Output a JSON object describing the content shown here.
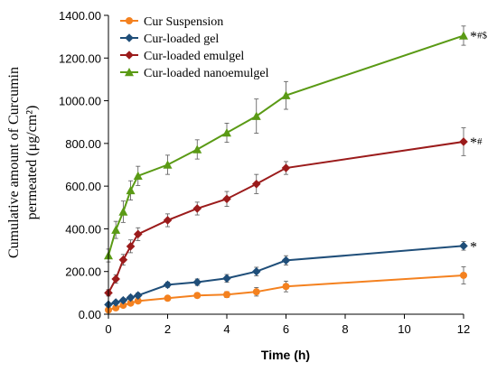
{
  "chart_data": {
    "type": "line",
    "xlabel": "Time (h)",
    "ylabel_line1": "Cumulative amount of Curcumin",
    "ylabel_line2": "permeated (μg/cm²)",
    "xlim": [
      0,
      12
    ],
    "ylim": [
      0,
      1400
    ],
    "x_ticks": [
      0,
      2,
      4,
      6,
      8,
      10,
      12
    ],
    "x_tick_labels": [
      "0",
      "2",
      "4",
      "6",
      "8",
      "10",
      "12"
    ],
    "y_ticks": [
      0,
      200,
      400,
      600,
      800,
      1000,
      1200,
      1400
    ],
    "y_tick_labels": [
      "0.00",
      "200.00",
      "400.00",
      "600.00",
      "800.00",
      "1000.00",
      "1200.00",
      "1400.00"
    ],
    "grid": false,
    "legend_position": "top-left",
    "x": [
      0,
      0.25,
      0.5,
      0.75,
      1,
      2,
      3,
      4,
      5,
      6,
      12
    ],
    "series": [
      {
        "name": "Cur Suspension",
        "color": "#F4811F",
        "marker": "circle",
        "values": [
          20,
          30,
          42,
          52,
          62,
          75,
          88,
          92,
          105,
          130,
          182
        ],
        "errors": [
          8,
          8,
          10,
          10,
          10,
          12,
          12,
          14,
          20,
          25,
          40
        ],
        "annotation": ""
      },
      {
        "name": "Cur-loaded gel",
        "color": "#1F4E79",
        "marker": "diamond",
        "values": [
          45,
          55,
          65,
          78,
          88,
          138,
          150,
          168,
          200,
          252,
          320
        ],
        "errors": [
          8,
          8,
          10,
          10,
          12,
          12,
          15,
          18,
          20,
          22,
          20
        ],
        "annotation": "*"
      },
      {
        "name": "Cur-loaded emulgel",
        "color": "#9B1B1B",
        "marker": "diamond",
        "values": [
          100,
          165,
          255,
          318,
          375,
          440,
          495,
          540,
          610,
          685,
          808
        ],
        "errors": [
          15,
          20,
          25,
          30,
          30,
          30,
          30,
          35,
          45,
          30,
          65
        ],
        "annotation": "*#"
      },
      {
        "name": "Cur-loaded nanoemulgel",
        "color": "#5A9A15",
        "marker": "triangle",
        "values": [
          275,
          395,
          480,
          580,
          648,
          700,
          772,
          850,
          928,
          1025,
          1305
        ],
        "errors": [
          30,
          40,
          50,
          45,
          45,
          45,
          45,
          45,
          80,
          65,
          45
        ],
        "annotation": "*#$"
      }
    ]
  }
}
